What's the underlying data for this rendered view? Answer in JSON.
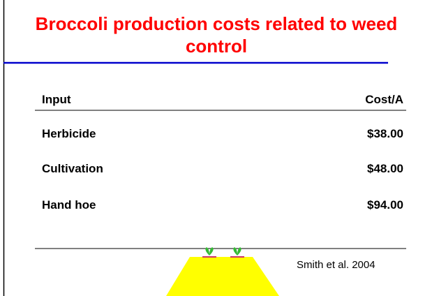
{
  "title": "Broccoli production costs related to weed control",
  "table": {
    "header": [
      "Input",
      "Cost/A"
    ],
    "rows": [
      [
        "Herbicide",
        "$38.00"
      ],
      [
        "Cultivation",
        "$48.00"
      ],
      [
        "Hand hoe",
        "$94.00"
      ]
    ]
  },
  "citation": "Smith et al. 2004"
}
